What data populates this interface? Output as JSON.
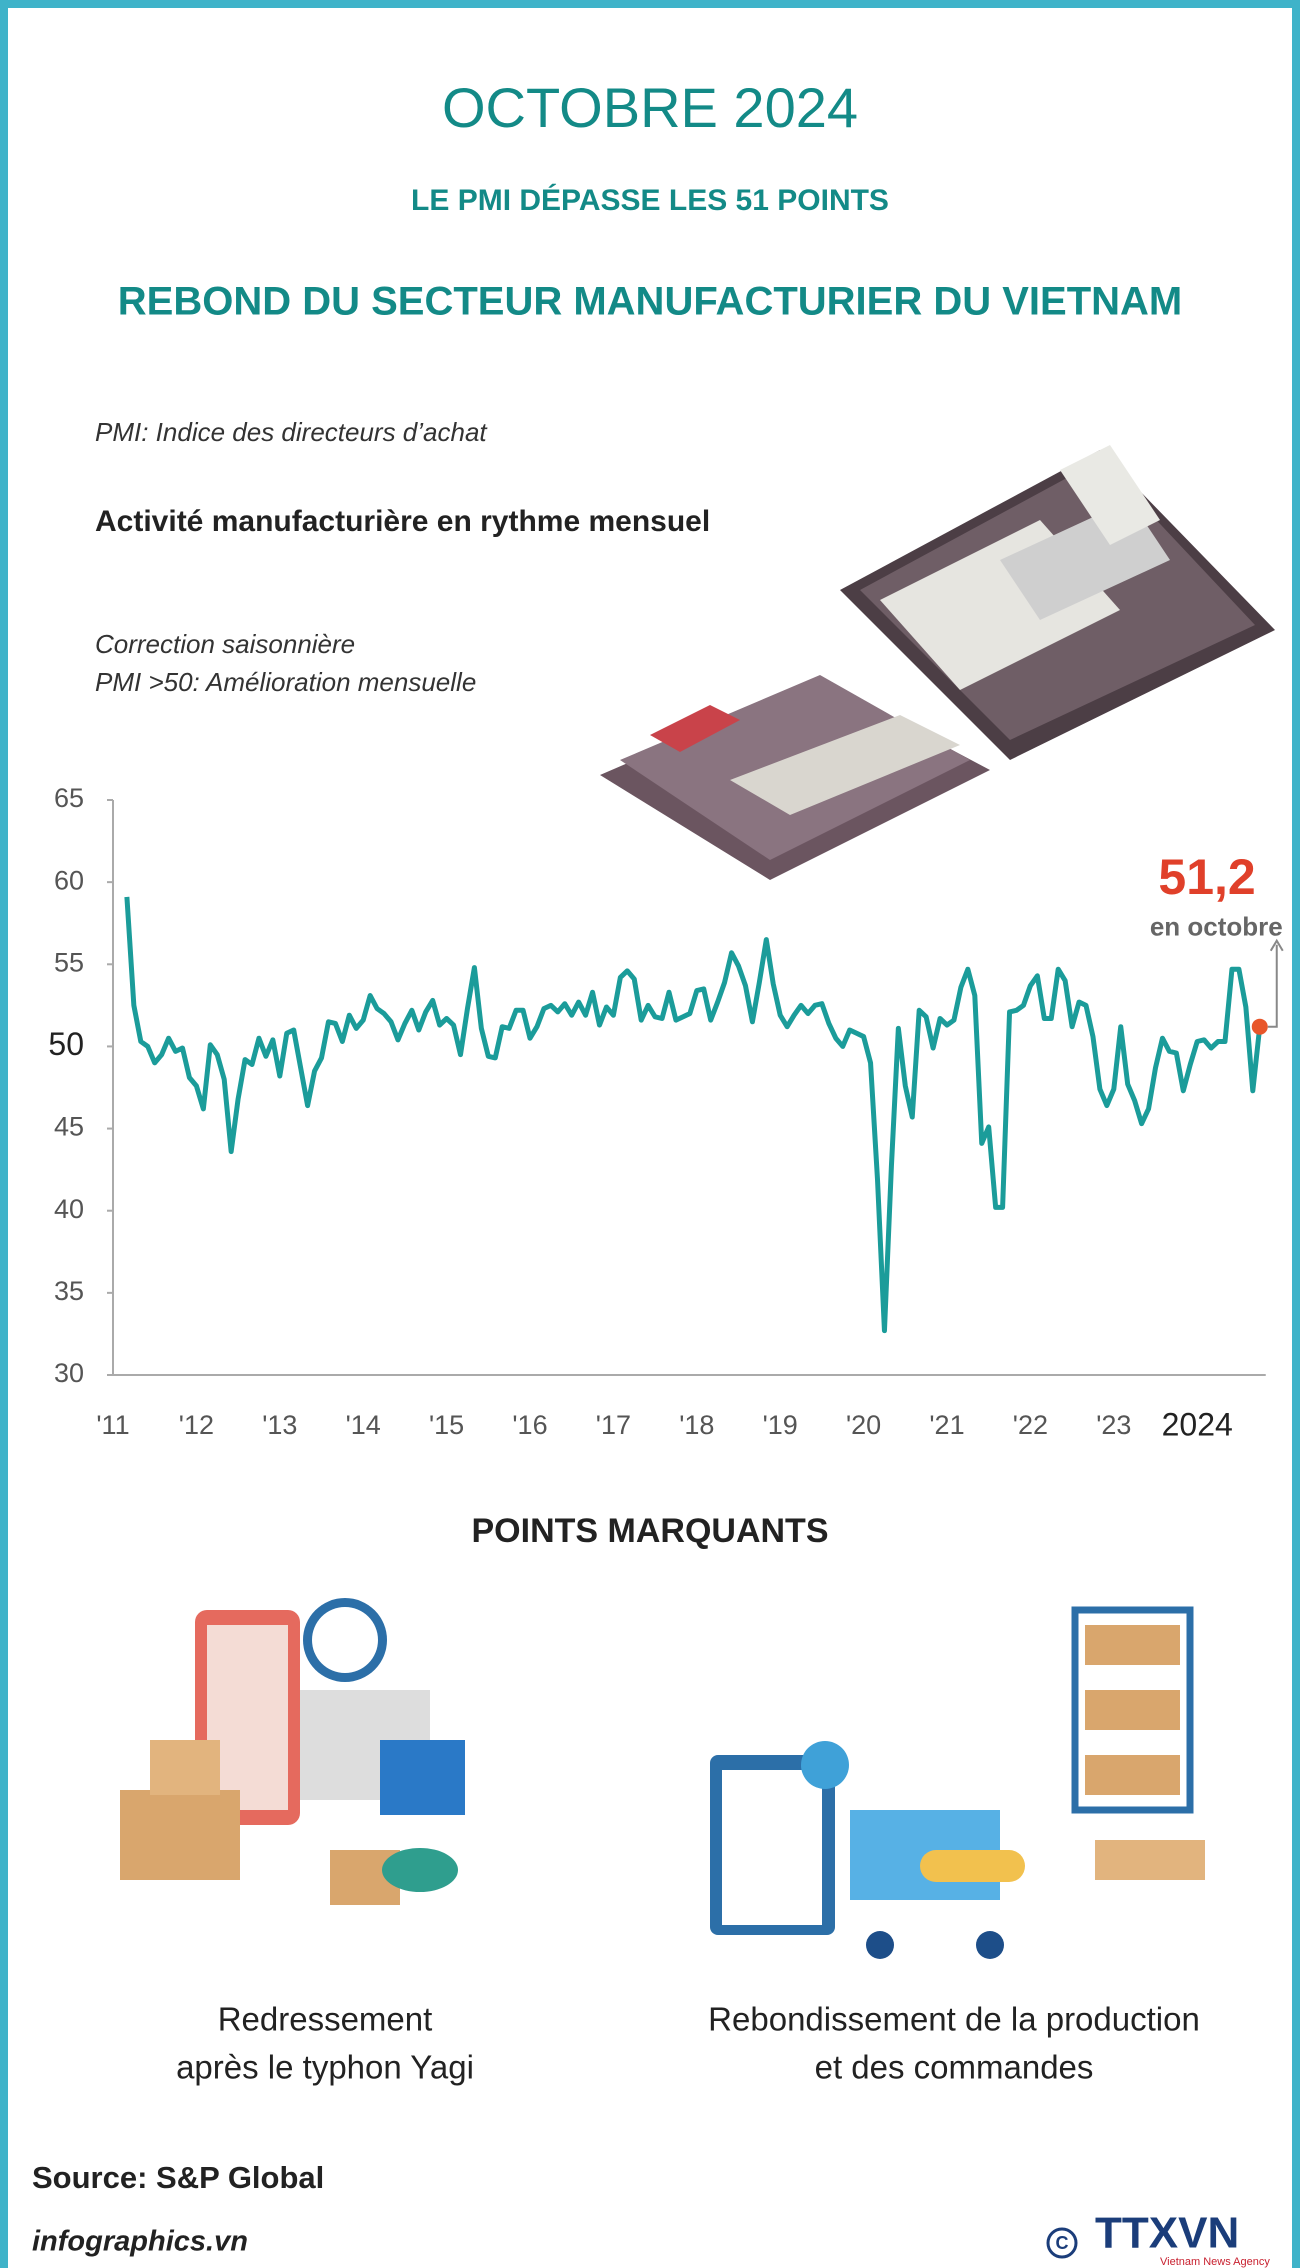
{
  "header": {
    "title": "OCTOBRE 2024",
    "subtitle": "LE PMI DÉPASSE LES  51 POINTS",
    "headline": "REBOND DU SECTEUR MANUFACTURIER DU VIETNAM"
  },
  "notes": {
    "definition": "PMI: Indice des directeurs d’achat",
    "heading": "Activité manufacturière en rythme mensuel",
    "adjustment": "Correction saisonnière",
    "threshold": "PMI >50: Amélioration mensuelle"
  },
  "chart_data": {
    "type": "line",
    "color": "#1b9c9a",
    "highlight_color": "#e8562a",
    "label_color": "#e0402a",
    "annotation": "en octobre",
    "categories": [
      "'11",
      null,
      null,
      null,
      null,
      null,
      null,
      null,
      null,
      null,
      null,
      null,
      "'12",
      null,
      null,
      null,
      null,
      null,
      null,
      null,
      null,
      null,
      null,
      null,
      "'13",
      null,
      null,
      null,
      null,
      null,
      null,
      null,
      null,
      null,
      null,
      null,
      "'14",
      null,
      null,
      null,
      null,
      null,
      null,
      null,
      null,
      null,
      null,
      null,
      "'15",
      null,
      null,
      null,
      null,
      null,
      null,
      null,
      null,
      null,
      null,
      null,
      "'16",
      null,
      null,
      null,
      null,
      null,
      null,
      null,
      null,
      null,
      null,
      null,
      "'17",
      null,
      null,
      null,
      null,
      null,
      null,
      null,
      null,
      null,
      null,
      null,
      "'18",
      null,
      null,
      null,
      null,
      null,
      null,
      null,
      null,
      null,
      null,
      null,
      "'19",
      null,
      null,
      null,
      null,
      null,
      null,
      null,
      null,
      null,
      null,
      null,
      "'20",
      null,
      null,
      null,
      null,
      null,
      null,
      null,
      null,
      null,
      null,
      null,
      "'21",
      null,
      null,
      null,
      null,
      null,
      null,
      null,
      null,
      null,
      null,
      null,
      "'22",
      null,
      null,
      null,
      null,
      null,
      null,
      null,
      null,
      null,
      null,
      null,
      "'23",
      null,
      null,
      null,
      null,
      null,
      null,
      null,
      null,
      null,
      null,
      null,
      "2024",
      null,
      null,
      null,
      null,
      null,
      null,
      null,
      null,
      null
    ],
    "values": [
      null,
      null,
      59.1,
      52.5,
      50.3,
      50.0,
      49.0,
      49.5,
      50.5,
      49.7,
      49.9,
      48.1,
      47.6,
      46.2,
      50.1,
      49.5,
      48.0,
      43.6,
      46.8,
      49.2,
      48.9,
      50.5,
      49.4,
      50.4,
      48.2,
      50.8,
      51.0,
      48.7,
      46.4,
      48.5,
      49.3,
      51.5,
      51.4,
      50.3,
      51.9,
      51.1,
      51.6,
      53.1,
      52.3,
      52.0,
      51.5,
      50.4,
      51.4,
      52.2,
      51.0,
      52.1,
      52.8,
      51.3,
      51.7,
      51.3,
      49.5,
      52.3,
      54.8,
      51.1,
      49.4,
      49.3,
      51.2,
      51.1,
      52.2,
      52.2,
      50.5,
      51.2,
      52.3,
      52.5,
      52.1,
      52.6,
      51.9,
      52.7,
      51.9,
      53.3,
      51.3,
      52.4,
      51.9,
      54.2,
      54.6,
      54.1,
      51.6,
      52.5,
      51.8,
      51.7,
      53.3,
      51.6,
      51.8,
      52.0,
      53.4,
      53.5,
      51.6,
      52.7,
      53.9,
      55.7,
      54.9,
      53.7,
      51.5,
      53.9,
      56.5,
      53.8,
      51.9,
      51.2,
      51.9,
      52.5,
      52.0,
      52.5,
      52.6,
      51.4,
      50.5,
      50.0,
      51.0,
      50.8,
      50.6,
      49.0,
      41.9,
      32.7,
      42.7,
      51.1,
      47.6,
      45.7,
      52.2,
      51.8,
      49.9,
      51.7,
      51.3,
      51.6,
      53.6,
      54.7,
      53.1,
      44.1,
      45.1,
      40.2,
      40.2,
      52.1,
      52.2,
      52.5,
      53.7,
      54.3,
      51.7,
      51.7,
      54.7,
      54.0,
      51.2,
      52.7,
      52.5,
      50.6,
      47.4,
      46.4,
      47.4,
      51.2,
      47.7,
      46.7,
      45.3,
      46.2,
      48.7,
      50.5,
      49.7,
      49.6,
      47.3,
      48.9,
      50.3,
      50.4,
      49.9,
      50.3,
      50.3,
      54.7,
      54.7,
      52.4,
      47.3,
      51.2
    ],
    "value_labels": [
      null,
      null,
      null,
      null,
      null,
      null,
      null,
      null,
      null,
      null,
      null,
      null,
      null,
      null,
      null,
      null,
      null,
      null,
      null,
      null,
      null,
      null,
      null,
      null,
      null,
      null,
      null,
      null,
      null,
      null,
      null,
      null,
      null,
      null,
      null,
      null,
      null,
      null,
      null,
      null,
      null,
      null,
      null,
      null,
      null,
      null,
      null,
      null,
      null,
      null,
      null,
      null,
      null,
      null,
      null,
      null,
      null,
      null,
      null,
      null,
      null,
      null,
      null,
      null,
      null,
      null,
      null,
      null,
      null,
      null,
      null,
      null,
      null,
      null,
      null,
      null,
      null,
      null,
      null,
      null,
      null,
      null,
      null,
      null,
      null,
      null,
      null,
      null,
      null,
      null,
      null,
      null,
      null,
      null,
      null,
      null,
      null,
      null,
      null,
      null,
      null,
      null,
      null,
      null,
      null,
      null,
      null,
      null,
      null,
      null,
      null,
      null,
      null,
      null,
      null,
      null,
      null,
      null,
      null,
      null,
      null,
      null,
      null,
      null,
      null,
      null,
      null,
      null,
      null,
      null,
      null,
      null,
      null,
      null,
      null,
      null,
      null,
      null,
      null,
      null,
      null,
      null,
      null,
      null,
      null,
      null,
      null,
      null,
      null,
      null,
      null,
      null,
      null,
      null,
      null,
      null,
      null,
      null,
      null,
      null,
      null,
      null,
      null,
      null,
      null,
      "51,2"
    ],
    "ylim": [
      30,
      65
    ],
    "yticks": [
      30,
      35,
      40,
      45,
      50,
      55,
      60,
      65
    ],
    "grid": false
  },
  "highlights": {
    "title": "POINTS MARQUANTS",
    "items": [
      [
        "Redressement",
        "après le typhon Yagi"
      ],
      [
        "Rebondissement de la production",
        "et des commandes"
      ]
    ]
  },
  "footer": {
    "source": "Source: S&P Global",
    "site": "infographics.vn",
    "logo": "TTXVN",
    "agency": "Vietnam News Agency"
  }
}
